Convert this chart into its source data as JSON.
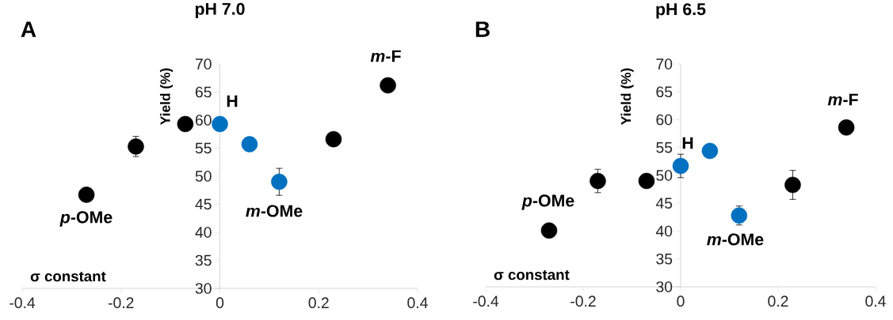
{
  "chart_data": [
    {
      "type": "scatter",
      "title": "pH 7.0",
      "xlabel": "σ constant",
      "ylabel": "Yield (%)",
      "xlim": [
        -0.4,
        0.4
      ],
      "xticks": [
        -0.4,
        -0.2,
        0,
        0.2,
        0.4
      ],
      "ylim": [
        30,
        70
      ],
      "yticks": [
        30,
        35,
        40,
        45,
        50,
        55,
        60,
        65,
        70
      ],
      "series": [
        {
          "color": "#000000",
          "x": [
            -0.27,
            -0.17,
            -0.07,
            0.23,
            0.34
          ],
          "values": [
            46.7,
            55.3,
            59.3,
            56.6,
            66.2
          ],
          "errors": [
            null,
            1.8,
            null,
            null,
            null
          ]
        },
        {
          "color": "#0070c0",
          "x": [
            0,
            0.06,
            0.12
          ],
          "values": [
            59.3,
            55.7,
            49.0
          ],
          "errors": [
            null,
            null,
            2.4
          ]
        }
      ],
      "annotations": [
        "A",
        "H",
        "*m*-F",
        "*p*-OMe",
        "*m*-OMe"
      ]
    },
    {
      "type": "scatter",
      "title": "pH 6.5",
      "xlabel": "σ constant",
      "ylabel": "Yield (%)",
      "xlim": [
        -0.4,
        0.4
      ],
      "xticks": [
        -0.4,
        -0.2,
        0,
        0.2,
        0.4
      ],
      "ylim": [
        30,
        70
      ],
      "yticks": [
        30,
        35,
        40,
        45,
        50,
        55,
        60,
        65,
        70
      ],
      "series": [
        {
          "color": "#000000",
          "x": [
            -0.27,
            -0.17,
            -0.07,
            0.23,
            0.34
          ],
          "values": [
            40.1,
            49.0,
            49.0,
            48.3,
            58.6
          ],
          "errors": [
            null,
            2.1,
            null,
            2.6,
            null
          ]
        },
        {
          "color": "#0070c0",
          "x": [
            0,
            0.06,
            0.12
          ],
          "values": [
            51.7,
            54.4,
            42.8
          ],
          "errors": [
            2.1,
            null,
            1.7
          ]
        }
      ],
      "annotations": [
        "B",
        "H",
        "*m*-F",
        "*p*-OMe",
        "*m*-OMe"
      ]
    }
  ]
}
